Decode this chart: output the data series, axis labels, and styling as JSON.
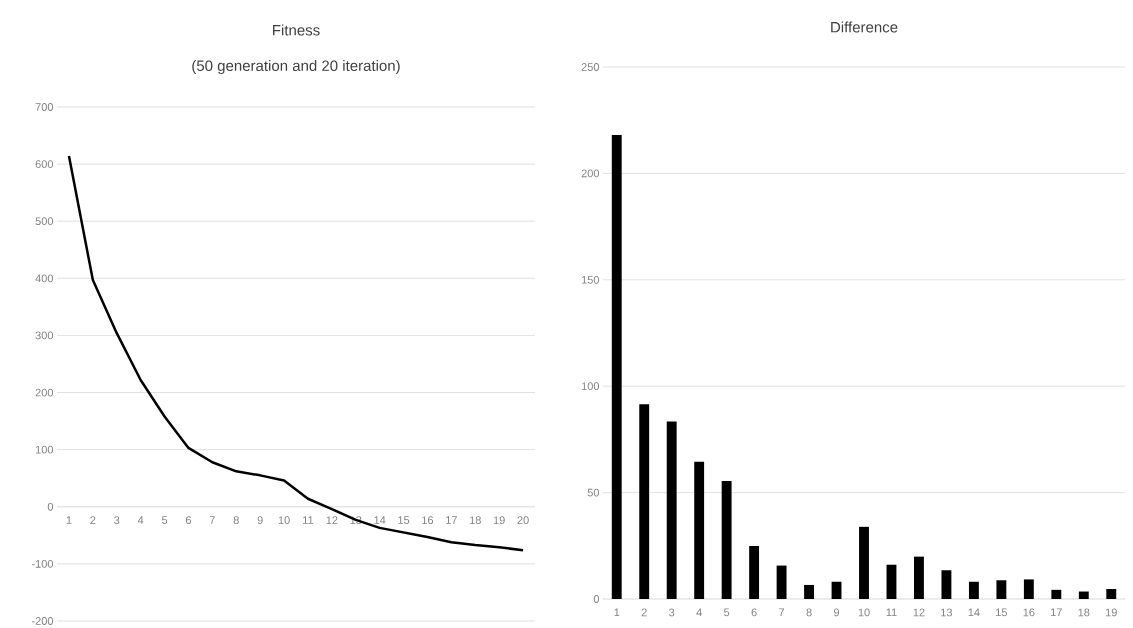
{
  "chart_data": [
    {
      "type": "line",
      "title": "Fitness",
      "subtitle": "(50 generation and 20 iteration)",
      "categories": [
        "1",
        "2",
        "3",
        "4",
        "5",
        "6",
        "7",
        "8",
        "9",
        "10",
        "11",
        "12",
        "13",
        "14",
        "15",
        "16",
        "17",
        "18",
        "19",
        "20"
      ],
      "values": [
        614,
        397,
        304,
        222,
        158,
        103,
        78,
        62,
        55,
        46,
        14,
        -4,
        -23,
        -37,
        -45,
        -53,
        -62,
        -67,
        -71,
        -76
      ],
      "color": "#000000",
      "ylim": [
        -200,
        700
      ],
      "yticks": [
        -200,
        -100,
        0,
        100,
        200,
        300,
        400,
        500,
        600,
        700
      ],
      "grid": "y",
      "line_style": "solid"
    },
    {
      "type": "bar",
      "title": "Difference",
      "categories": [
        "1",
        "2",
        "3",
        "4",
        "5",
        "6",
        "7",
        "8",
        "9",
        "10",
        "11",
        "12",
        "13",
        "14",
        "15",
        "16",
        "17",
        "18",
        "19"
      ],
      "values": [
        218,
        91.5,
        83.4,
        64.5,
        55.4,
        24.9,
        15.7,
        6.6,
        8.1,
        33.9,
        16.1,
        19.9,
        13.5,
        8.1,
        8.8,
        9.2,
        4.3,
        3.5,
        4.7
      ],
      "color": "#000000",
      "ylim": [
        0,
        250
      ],
      "yticks": [
        0,
        50,
        100,
        150,
        200,
        250
      ],
      "grid": "y"
    }
  ]
}
